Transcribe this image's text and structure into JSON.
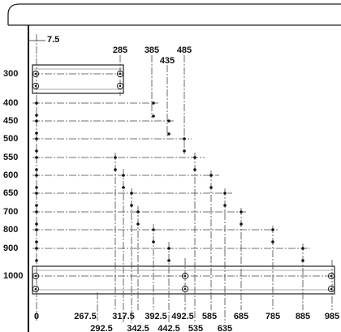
{
  "offset_label": "7.5",
  "top_labels": [
    "285",
    "385",
    "435",
    "485"
  ],
  "y_labels": [
    "300",
    "400",
    "450",
    "500",
    "550",
    "600",
    "650",
    "700",
    "800",
    "900",
    "1000"
  ],
  "bottom_labels_row1": [
    "0",
    "267.5",
    "317.5",
    "392.5",
    "492.5",
    "585",
    "685",
    "785",
    "885",
    "985"
  ],
  "bottom_labels_row2": [
    "292.5",
    "342.5",
    "442.5",
    "535",
    "635"
  ]
}
